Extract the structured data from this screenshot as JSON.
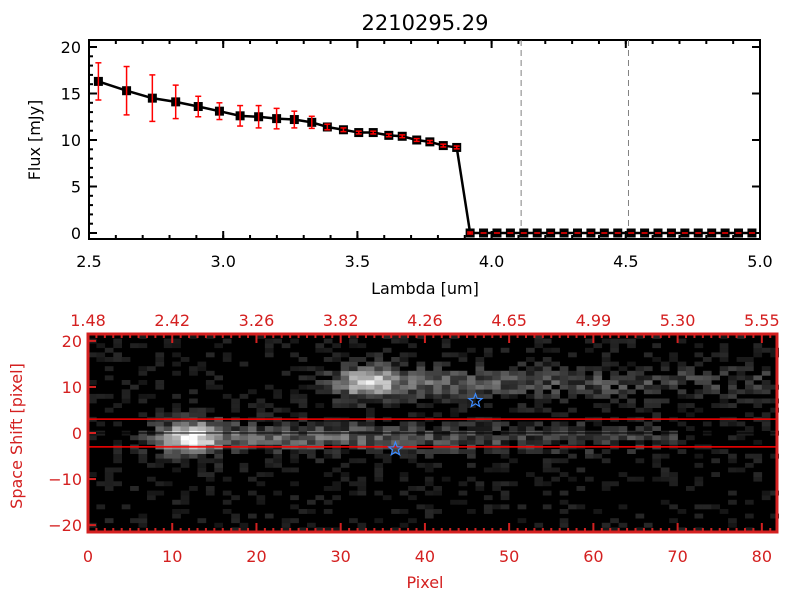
{
  "chart_data": [
    {
      "type": "line",
      "title": "2210295.29",
      "xlabel": "Lambda [um]",
      "ylabel": "Flux [mJy]",
      "xlim": [
        2.5,
        5.0
      ],
      "ylim": [
        -0.6,
        21
      ],
      "xticks": [
        "2.5",
        "3.0",
        "3.5",
        "4.0",
        "4.5",
        "5.0"
      ],
      "xtick_values": [
        2.5,
        3.0,
        3.5,
        4.0,
        4.5,
        5.0
      ],
      "yticks": [
        "0",
        "5",
        "10",
        "15",
        "20"
      ],
      "ytick_values": [
        0,
        5,
        10,
        15,
        20
      ],
      "series": [
        {
          "name": "flux",
          "x": [
            2.535,
            2.64,
            2.736,
            2.823,
            2.907,
            2.986,
            3.063,
            3.132,
            3.199,
            3.265,
            3.33,
            3.388,
            3.448,
            3.505,
            3.559,
            3.617,
            3.667,
            3.721,
            3.77,
            3.82,
            3.87,
            3.92,
            3.97,
            4.02,
            4.07,
            4.12,
            4.17,
            4.22,
            4.27,
            4.32,
            4.37,
            4.42,
            4.47,
            4.52,
            4.57,
            4.62,
            4.67,
            4.72,
            4.77,
            4.82,
            4.87,
            4.92,
            4.97
          ],
          "y": [
            16.3,
            15.3,
            14.5,
            14.1,
            13.6,
            13.1,
            12.6,
            12.5,
            12.3,
            12.2,
            11.9,
            11.4,
            11.1,
            10.8,
            10.8,
            10.5,
            10.4,
            10.0,
            9.8,
            9.4,
            9.2,
            0,
            0,
            0,
            0,
            0,
            0,
            0,
            0,
            0,
            0,
            0,
            0,
            0,
            0,
            0,
            0,
            0,
            0,
            0,
            0,
            0,
            0
          ],
          "yerr": [
            2.0,
            2.6,
            2.5,
            1.8,
            1.1,
            0.9,
            1.1,
            1.2,
            1.1,
            0.9,
            0.65,
            0.3,
            0.2,
            0.15,
            0.15,
            0.15,
            0.15,
            0.15,
            0.15,
            0.15,
            0.15,
            0.1,
            0,
            0,
            0,
            0,
            0,
            0,
            0,
            0,
            0,
            0,
            0,
            0,
            0,
            0,
            0,
            0,
            0,
            0,
            0,
            0,
            0
          ]
        }
      ],
      "vlines_dashed": [
        4.11,
        4.51
      ],
      "zero_line_from": 3.92,
      "colors": {
        "line": "#000000",
        "errorbar": "#ff0000",
        "vline": "#808080"
      }
    },
    {
      "type": "heatmap",
      "xlabel": "Pixel",
      "ylabel": "Space Shift [pixel]",
      "xlim": [
        0,
        81.8
      ],
      "ylim": [
        -21.5,
        21.5
      ],
      "xticks": [
        "0",
        "10",
        "20",
        "30",
        "40",
        "50",
        "60",
        "70",
        "80"
      ],
      "xtick_values": [
        0,
        10,
        20,
        30,
        40,
        50,
        60,
        70,
        80
      ],
      "top_xticks": [
        "1.48",
        "2.42",
        "3.26",
        "3.82",
        "4.26",
        "4.65",
        "4.99",
        "5.30",
        "5.55"
      ],
      "yticks": [
        "20",
        "10",
        "0",
        "−10",
        "−20"
      ],
      "ytick_values": [
        20,
        10,
        0,
        -10,
        -20
      ],
      "sources": [
        {
          "pixel": 12,
          "shift": -1,
          "tail_to": 70,
          "peak": 1.0
        },
        {
          "pixel": 33,
          "shift": 11,
          "tail_to": 81,
          "peak": 0.85
        }
      ],
      "aperture_lines": [
        3,
        -3
      ],
      "center_line": 0,
      "star_markers": [
        {
          "pixel": 46,
          "shift": 7
        },
        {
          "pixel": 36.5,
          "shift": -3.5
        }
      ],
      "colors": {
        "axis": "#d42020",
        "aperture": "#ff0000",
        "star": "#3a8aff"
      }
    }
  ]
}
